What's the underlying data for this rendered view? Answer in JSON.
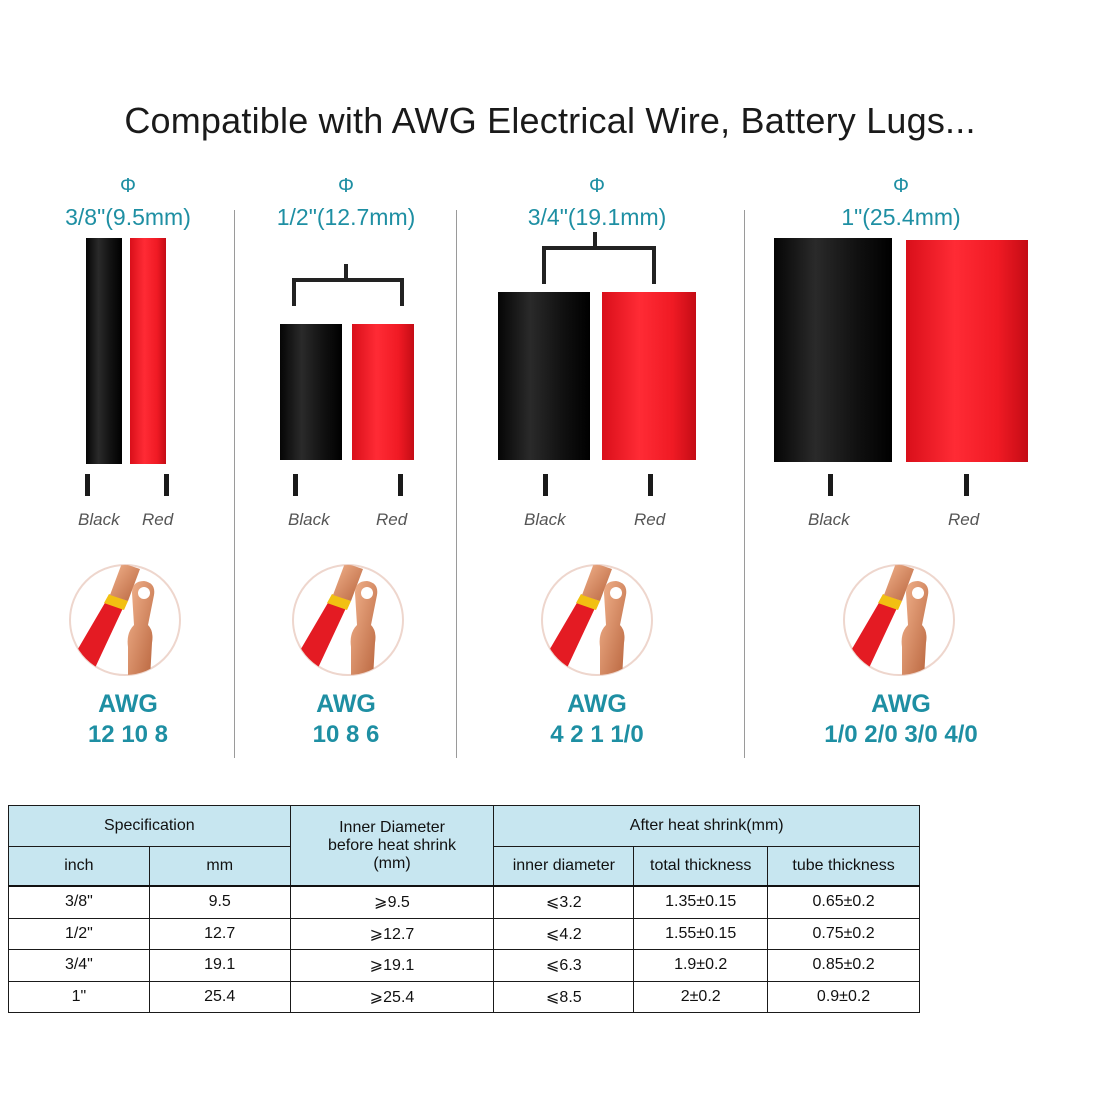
{
  "title": "Compatible with AWG Electrical Wire, Battery Lugs...",
  "phi_symbol": "Φ",
  "colors": {
    "accent": "#1e8fa3",
    "black_tube": "#111111",
    "red_tube": "#f01a24",
    "header_bg": "#c7e6f0"
  },
  "columns": [
    {
      "size": "3/8\"(9.5mm)",
      "black_label": "Black",
      "red_label": "Red",
      "awg_label": "AWG",
      "awg_values": "12 10 8"
    },
    {
      "size": "1/2\"(12.7mm)",
      "black_label": "Black",
      "red_label": "Red",
      "awg_label": "AWG",
      "awg_values": "10 8 6"
    },
    {
      "size": "3/4\"(19.1mm)",
      "black_label": "Black",
      "red_label": "Red",
      "awg_label": "AWG",
      "awg_values": "4 2 1 1/0"
    },
    {
      "size": "1\"(25.4mm)",
      "black_label": "Black",
      "red_label": "Red",
      "awg_label": "AWG",
      "awg_values": "1/0 2/0 3/0 4/0"
    }
  ],
  "table": {
    "specification": "Specification",
    "inner_diameter_before": "Inner Diameter before heat shrink (mm)",
    "after_heat_shrink": "After heat shrink(mm)",
    "col_inch": "inch",
    "col_mm": "mm",
    "col_inner_diameter": "inner diameter",
    "col_total_thickness": "total thickness",
    "col_tube_thickness": "tube thickness",
    "rows": [
      [
        "3/8\"",
        "9.5",
        "⩾9.5",
        "⩽3.2",
        "1.35±0.15",
        "0.65±0.2"
      ],
      [
        "1/2\"",
        "12.7",
        "⩾12.7",
        "⩽4.2",
        "1.55±0.15",
        "0.75±0.2"
      ],
      [
        "3/4\"",
        "19.1",
        "⩾19.1",
        "⩽6.3",
        "1.9±0.2",
        "0.85±0.2"
      ],
      [
        "1\"",
        "25.4",
        "⩾25.4",
        "⩽8.5",
        "2±0.2",
        "0.9±0.2"
      ]
    ]
  }
}
